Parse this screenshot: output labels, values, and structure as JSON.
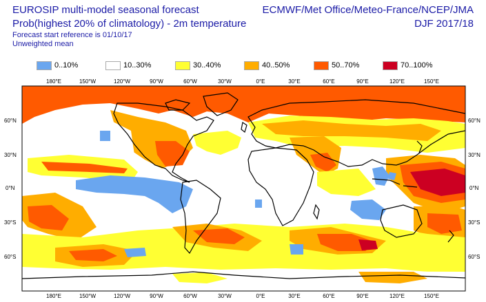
{
  "header": {
    "title": "EUROSIP multi-model seasonal forecast",
    "subtitle": "Prob(highest 20% of climatology) - 2m temperature",
    "reference": "Forecast start reference is 01/10/17",
    "weighting": "Unweighted mean",
    "centres": "ECMWF/Met Office/Meteo-France/NCEP/JMA",
    "season": "DJF 2017/18"
  },
  "legend": [
    {
      "label": "0..10%",
      "color": "#6aa6ef"
    },
    {
      "label": "10..30%",
      "color": "#ffffff"
    },
    {
      "label": "30..40%",
      "color": "#ffff33"
    },
    {
      "label": "40..50%",
      "color": "#ffad00"
    },
    {
      "label": "50..70%",
      "color": "#ff5a00"
    },
    {
      "label": "70..100%",
      "color": "#cc0022"
    }
  ],
  "axes": {
    "lon_labels": [
      "180°E",
      "150°W",
      "120°W",
      "90°W",
      "60°W",
      "30°W",
      "0°E",
      "30°E",
      "60°E",
      "90°E",
      "120°E",
      "150°E"
    ],
    "lat_labels": [
      "60°N",
      "30°N",
      "0°N",
      "30°S",
      "60°S"
    ]
  }
}
